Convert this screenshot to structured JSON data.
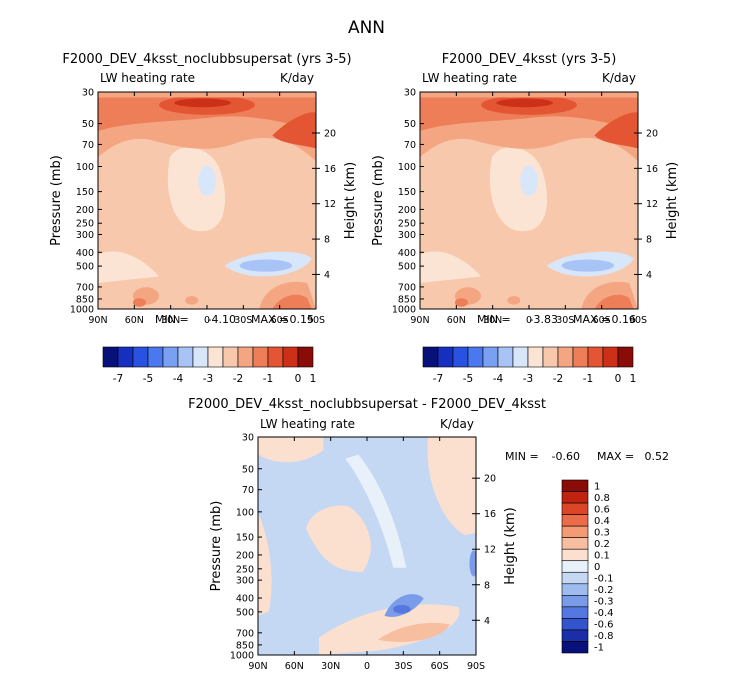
{
  "page_title": "ANN",
  "chart_data": [
    {
      "type": "heatmap",
      "title": "F2000_DEV_4ksst_noclubbsupersat (yrs 3-5)",
      "left_label": "LW heating rate",
      "right_label": "K/day",
      "xlabel": "",
      "ylabel": "Pressure (mb)",
      "ylabel_right": "Height (km)",
      "x_ticks": [
        "90N",
        "60N",
        "30N",
        "0",
        "30S",
        "60S",
        "90S"
      ],
      "y_ticks": [
        "30",
        "50",
        "70",
        "100",
        "150",
        "200",
        "250",
        "300",
        "400",
        "500",
        "700",
        "850",
        "1000"
      ],
      "y_ticks_right": [
        "20",
        "16",
        "12",
        "8",
        "4"
      ],
      "stats": {
        "min_label": "MIN =",
        "min": "-4.10",
        "max_label": "MAX =",
        "max": "0.15"
      },
      "colorbar": {
        "orientation": "horizontal",
        "labels": [
          "-7",
          "-5",
          "-4",
          "-3",
          "-2",
          "-1",
          "0",
          "1"
        ]
      }
    },
    {
      "type": "heatmap",
      "title": "F2000_DEV_4ksst (yrs 3-5)",
      "left_label": "LW heating rate",
      "right_label": "K/day",
      "xlabel": "",
      "ylabel": "Pressure (mb)",
      "ylabel_right": "Height (km)",
      "x_ticks": [
        "90N",
        "60N",
        "30N",
        "0",
        "30S",
        "60S",
        "90S"
      ],
      "y_ticks": [
        "30",
        "50",
        "70",
        "100",
        "150",
        "200",
        "250",
        "300",
        "400",
        "500",
        "700",
        "850",
        "1000"
      ],
      "y_ticks_right": [
        "20",
        "16",
        "12",
        "8",
        "4"
      ],
      "stats": {
        "min_label": "MIN =",
        "min": "-3.83",
        "max_label": "MAX =",
        "max": "0.16"
      },
      "colorbar": {
        "orientation": "horizontal",
        "labels": [
          "-7",
          "-5",
          "-4",
          "-3",
          "-2",
          "-1",
          "0",
          "1"
        ]
      }
    },
    {
      "type": "heatmap",
      "title": "F2000_DEV_4ksst_noclubbsupersat - F2000_DEV_4ksst",
      "left_label": "LW heating rate",
      "right_label": "K/day",
      "xlabel": "",
      "ylabel": "Pressure (mb)",
      "ylabel_right": "Height (km)",
      "x_ticks": [
        "90N",
        "60N",
        "30N",
        "0",
        "30S",
        "60S",
        "90S"
      ],
      "y_ticks": [
        "30",
        "50",
        "70",
        "100",
        "150",
        "200",
        "250",
        "300",
        "400",
        "500",
        "700",
        "850",
        "1000"
      ],
      "y_ticks_right": [
        "20",
        "16",
        "12",
        "8",
        "4"
      ],
      "stats": {
        "min_label": "MIN =",
        "min": "-0.60",
        "max_label": "MAX =",
        "max": "0.52"
      },
      "colorbar": {
        "orientation": "vertical",
        "labels": [
          "1",
          "0.8",
          "0.6",
          "0.4",
          "0.3",
          "0.2",
          "0.1",
          "0",
          "-0.1",
          "-0.2",
          "-0.3",
          "-0.4",
          "-0.6",
          "-0.8",
          "-1"
        ]
      }
    }
  ],
  "colors": {
    "abs_scale": [
      "#08107a",
      "#1530c0",
      "#2a52e0",
      "#4a78ee",
      "#7aa0f2",
      "#a8c4f6",
      "#d8e6fa",
      "#fbe4d4",
      "#f8c8ac",
      "#f4a682",
      "#ee7e58",
      "#e45534",
      "#cc3018",
      "#8a0c08"
    ],
    "diff_scale": [
      "#8a0c08",
      "#c02410",
      "#dc4628",
      "#ec6c48",
      "#f49a74",
      "#f8bea0",
      "#fbe0d0",
      "#e8f0fa",
      "#c4d8f4",
      "#9ebcf0",
      "#7a9ce8",
      "#5478e0",
      "#3254cc",
      "#1a2ea8",
      "#08107a"
    ]
  }
}
